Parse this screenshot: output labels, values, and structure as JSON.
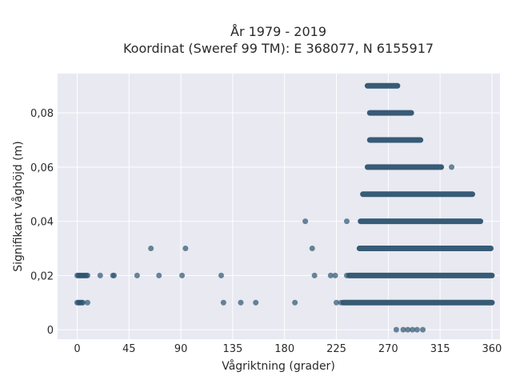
{
  "chart_data": {
    "type": "scatter",
    "title_line1": "År 1979 - 2019",
    "title_line2": "Koordinat (Sweref 99 TM): E 368077, N 6155917",
    "xlabel": "Vågriktning (grader)",
    "ylabel": "Signifikant våghöjd (m)",
    "xlim": [
      -17,
      367
    ],
    "ylim": [
      -0.0035,
      0.0945
    ],
    "grid": true,
    "x_ticks": [
      {
        "value": 0,
        "label": "0"
      },
      {
        "value": 45,
        "label": "45"
      },
      {
        "value": 90,
        "label": "90"
      },
      {
        "value": 135,
        "label": "135"
      },
      {
        "value": 180,
        "label": "180"
      },
      {
        "value": 225,
        "label": "225"
      },
      {
        "value": 270,
        "label": "270"
      },
      {
        "value": 315,
        "label": "315"
      },
      {
        "value": 360,
        "label": "360"
      }
    ],
    "y_ticks": [
      {
        "value": 0,
        "label": "0"
      },
      {
        "value": 0.02,
        "label": "0,02"
      },
      {
        "value": 0.04,
        "label": "0,04"
      },
      {
        "value": 0.06,
        "label": "0,06"
      },
      {
        "value": 0.08,
        "label": "0,08"
      }
    ],
    "marker_color": "#2e5470",
    "bands": [
      {
        "y": 0.09,
        "x_from": 252,
        "x_to": 278
      },
      {
        "y": 0.08,
        "x_from": 254,
        "x_to": 290
      },
      {
        "y": 0.07,
        "x_from": 254,
        "x_to": 298
      },
      {
        "y": 0.06,
        "x_from": 252,
        "x_to": 316
      },
      {
        "y": 0.05,
        "x_from": 248,
        "x_to": 343
      },
      {
        "y": 0.04,
        "x_from": 246,
        "x_to": 350
      },
      {
        "y": 0.03,
        "x_from": 245,
        "x_to": 359
      },
      {
        "y": 0.02,
        "x_from": 236,
        "x_to": 360
      },
      {
        "y": 0.01,
        "x_from": 231,
        "x_to": 360
      }
    ],
    "points": [
      {
        "x": 0,
        "y": 0.02
      },
      {
        "x": 1,
        "y": 0.02
      },
      {
        "x": 2,
        "y": 0.02
      },
      {
        "x": 3,
        "y": 0.02
      },
      {
        "x": 4,
        "y": 0.02
      },
      {
        "x": 5,
        "y": 0.02
      },
      {
        "x": 6,
        "y": 0.02
      },
      {
        "x": 7,
        "y": 0.02
      },
      {
        "x": 8,
        "y": 0.02
      },
      {
        "x": 9,
        "y": 0.02
      },
      {
        "x": 0,
        "y": 0.01
      },
      {
        "x": 1,
        "y": 0.01
      },
      {
        "x": 2,
        "y": 0.01
      },
      {
        "x": 3,
        "y": 0.01
      },
      {
        "x": 4,
        "y": 0.01
      },
      {
        "x": 5,
        "y": 0.01
      },
      {
        "x": 9,
        "y": 0.01
      },
      {
        "x": 20,
        "y": 0.02
      },
      {
        "x": 31,
        "y": 0.02
      },
      {
        "x": 32,
        "y": 0.02
      },
      {
        "x": 52,
        "y": 0.02
      },
      {
        "x": 64,
        "y": 0.03
      },
      {
        "x": 71,
        "y": 0.02
      },
      {
        "x": 91,
        "y": 0.02
      },
      {
        "x": 94,
        "y": 0.03
      },
      {
        "x": 125,
        "y": 0.02
      },
      {
        "x": 127,
        "y": 0.01
      },
      {
        "x": 142,
        "y": 0.01
      },
      {
        "x": 155,
        "y": 0.01
      },
      {
        "x": 189,
        "y": 0.01
      },
      {
        "x": 198,
        "y": 0.04
      },
      {
        "x": 204,
        "y": 0.03
      },
      {
        "x": 206,
        "y": 0.02
      },
      {
        "x": 220,
        "y": 0.02
      },
      {
        "x": 224,
        "y": 0.02
      },
      {
        "x": 225,
        "y": 0.01
      },
      {
        "x": 229,
        "y": 0.01
      },
      {
        "x": 234,
        "y": 0.04
      },
      {
        "x": 234,
        "y": 0.02
      },
      {
        "x": 325,
        "y": 0.06
      },
      {
        "x": 277,
        "y": 0.0
      },
      {
        "x": 283,
        "y": 0.0
      },
      {
        "x": 287,
        "y": 0.0
      },
      {
        "x": 291,
        "y": 0.0
      },
      {
        "x": 295,
        "y": 0.0
      },
      {
        "x": 300,
        "y": 0.0
      }
    ]
  }
}
